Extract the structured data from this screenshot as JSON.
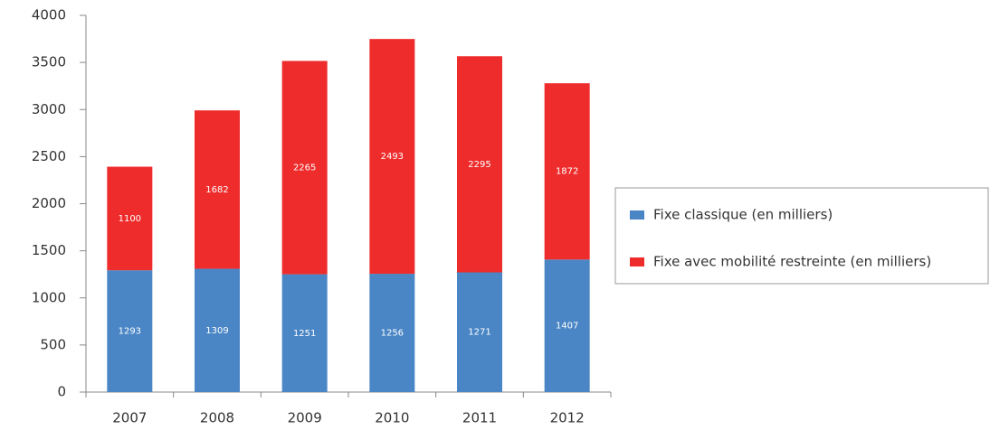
{
  "chart_data": {
    "type": "stacked_bar",
    "categories": [
      "2007",
      "2008",
      "2009",
      "2010",
      "2011",
      "2012"
    ],
    "series": [
      {
        "name": "Fixe classique (en milliers)",
        "color": "#4a86c5",
        "values": [
          1293,
          1309,
          1251,
          1256,
          1271,
          1407
        ]
      },
      {
        "name": "Fixe avec mobilité restreinte (en milliers)",
        "color": "#ee2c2c",
        "values": [
          1100,
          1682,
          2265,
          2493,
          2295,
          1872
        ]
      }
    ],
    "ylim": [
      0,
      4000
    ],
    "yticks": [
      0,
      500,
      1000,
      1500,
      2000,
      2500,
      3000,
      3500,
      4000
    ],
    "legend": "right"
  }
}
